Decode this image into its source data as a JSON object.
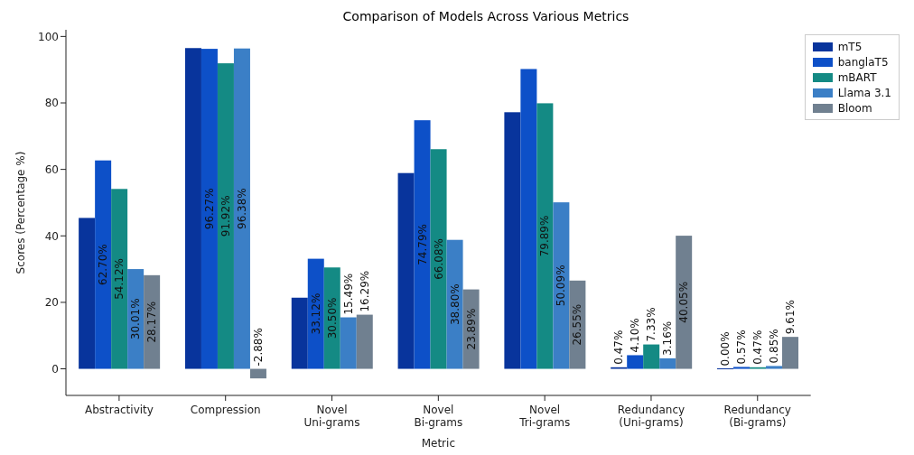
{
  "chart_data": {
    "type": "bar",
    "title": "Comparison of Models Across Various Metrics",
    "xlabel": "Metric",
    "ylabel": "Scores (Percentage %)",
    "categories": [
      "Abstractivity",
      "Compression",
      "Novel\nUni-grams",
      "Novel\nBi-grams",
      "Novel\nTri-grams",
      "Redundancy\n(Uni-grams)",
      "Redundancy\n(Bi-grams)"
    ],
    "series": [
      {
        "name": "mT5",
        "color": "#08349c",
        "values": [
          45.4,
          96.5,
          21.4,
          58.9,
          77.2,
          0.47,
          0.0
        ],
        "value_labels": [
          null,
          null,
          null,
          null,
          null,
          "0.47%",
          "0.00%"
        ]
      },
      {
        "name": "banglaT5",
        "color": "#0d50c8",
        "values": [
          62.7,
          96.27,
          33.12,
          74.79,
          90.2,
          4.1,
          0.57
        ],
        "value_labels": [
          "62.70%",
          "96.27%",
          "33.12%",
          "74.79%",
          null,
          "4.10%",
          "0.57%"
        ]
      },
      {
        "name": "mBART",
        "color": "#148a84",
        "values": [
          54.12,
          91.92,
          30.5,
          66.08,
          79.89,
          7.33,
          0.47
        ],
        "value_labels": [
          "54.12%",
          "91.92%",
          "30.50%",
          "66.08%",
          "79.89%",
          "7.33%",
          "0.47%"
        ]
      },
      {
        "name": "Llama 3.1",
        "color": "#3b7fc6",
        "values": [
          30.01,
          96.38,
          15.49,
          38.8,
          50.09,
          3.16,
          0.85
        ],
        "value_labels": [
          "30.01%",
          "96.38%",
          "15.49%",
          "38.80%",
          "50.09%",
          "3.16%",
          "0.85%"
        ]
      },
      {
        "name": "Bloom",
        "color": "#708090",
        "values": [
          28.17,
          -2.88,
          16.29,
          23.89,
          26.55,
          40.05,
          9.61
        ],
        "value_labels": [
          "28.17%",
          "-2.88%",
          "16.29%",
          "23.89%",
          "26.55%",
          "40.05%",
          "9.61%"
        ]
      }
    ],
    "ylim": [
      -8,
      102
    ],
    "yticks": [
      0,
      20,
      40,
      60,
      80,
      100
    ],
    "legend": "top right"
  }
}
